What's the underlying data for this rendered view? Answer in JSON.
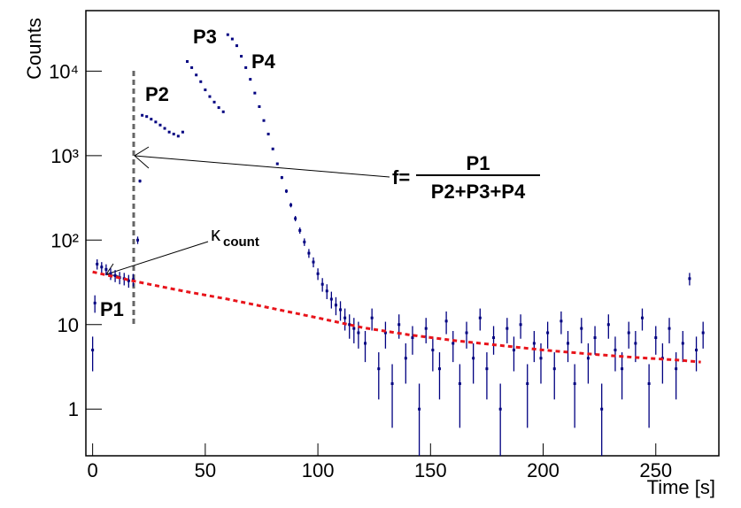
{
  "chart_data": {
    "type": "histogram-log",
    "y_label": "Counts",
    "x_label": "Time [s]",
    "annotations": {
      "p1": "P1",
      "p2": "P2",
      "p3": "P3",
      "p4": "P4",
      "f": "f=",
      "num": "P1",
      "den": "P2+P3+P4",
      "kappa": "κ",
      "kappa_sub": "count"
    },
    "x": [
      0,
      1,
      2,
      4,
      6,
      8,
      10,
      12,
      14,
      16,
      18,
      20,
      21,
      22,
      24,
      26,
      28,
      30,
      32,
      34,
      36,
      38,
      40,
      42,
      44,
      46,
      48,
      50,
      52,
      54,
      56,
      58,
      60,
      62,
      64,
      66,
      68,
      70,
      72,
      74,
      76,
      78,
      80,
      82,
      84,
      86,
      88,
      90,
      92,
      94,
      96,
      98,
      100,
      102,
      104,
      106,
      108,
      110,
      112,
      114,
      116,
      118,
      121,
      124,
      127,
      130,
      133,
      136,
      139,
      142,
      145,
      148,
      151,
      154,
      157,
      160,
      163,
      166,
      169,
      172,
      175,
      178,
      181,
      184,
      187,
      190,
      193,
      196,
      199,
      202,
      205,
      208,
      211,
      214,
      217,
      220,
      223,
      226,
      229,
      232,
      235,
      238,
      241,
      244,
      247,
      250,
      253,
      256,
      259,
      262,
      265,
      268,
      271
    ],
    "values": [
      5,
      18,
      52,
      48,
      45,
      40,
      38,
      36,
      35,
      33,
      34,
      100,
      500,
      3000,
      2900,
      2700,
      2500,
      2300,
      2100,
      1900,
      1800,
      1700,
      1900,
      13000,
      11000,
      9000,
      7500,
      6000,
      5000,
      4300,
      3700,
      3300,
      27000,
      24000,
      20000,
      15000,
      11000,
      8000,
      5500,
      3800,
      2600,
      1800,
      1200,
      800,
      550,
      380,
      260,
      180,
      130,
      95,
      70,
      55,
      40,
      30,
      25,
      20,
      17,
      15,
      12,
      10,
      9,
      8,
      6,
      12,
      3,
      8,
      2,
      10,
      4,
      7,
      1,
      9,
      5,
      3,
      11,
      6,
      2,
      8,
      4,
      12,
      3,
      7,
      1,
      9,
      5,
      10,
      2,
      6,
      4,
      8,
      3,
      11,
      6,
      2,
      9,
      4,
      7,
      1,
      10,
      5,
      3,
      8,
      6,
      12,
      2,
      7,
      4,
      9,
      3,
      6,
      35,
      5,
      8
    ],
    "errors": [
      2.2,
      4.2,
      7.2,
      6.9,
      6.7,
      6.3,
      6.2,
      6,
      5.9,
      5.7,
      5.8,
      10,
      22,
      55,
      54,
      52,
      50,
      48,
      46,
      44,
      42,
      41,
      44,
      114,
      105,
      95,
      87,
      77,
      71,
      66,
      61,
      57,
      164,
      155,
      141,
      122,
      105,
      89,
      74,
      62,
      51,
      42,
      35,
      28,
      23,
      19,
      16,
      13,
      11,
      9.7,
      8.4,
      7.4,
      6.3,
      5.5,
      5,
      4.5,
      4.1,
      3.9,
      3.5,
      3.2,
      3,
      2.8,
      2.4,
      3.5,
      1.7,
      2.8,
      1.4,
      3.2,
      2,
      2.6,
      1,
      3,
      2.2,
      1.7,
      3.3,
      2.4,
      1.4,
      2.8,
      2,
      3.5,
      1.7,
      2.6,
      1,
      3,
      2.2,
      3.2,
      1.4,
      2.4,
      2,
      2.8,
      1.7,
      3.3,
      2.4,
      1.4,
      3,
      2,
      2.6,
      1,
      3.2,
      2.2,
      1.7,
      2.8,
      2.4,
      3.5,
      1.4,
      2.6,
      2,
      3,
      1.7,
      2.4,
      5.9,
      2.2,
      2.8
    ],
    "color": "#000080",
    "fit": {
      "color": "#e8141b",
      "x": [
        0,
        20,
        40,
        60,
        80,
        100,
        120,
        140,
        160,
        180,
        200,
        220,
        240,
        260,
        270
      ],
      "values": [
        42,
        32,
        25,
        20,
        15.5,
        12,
        9.2,
        7.6,
        6.5,
        5.7,
        5,
        4.5,
        4.1,
        3.8,
        3.6
      ]
    },
    "xlim": [
      -3,
      278
    ],
    "ylim": [
      0.28,
      52000
    ],
    "log_y": true,
    "xticks": [
      0,
      50,
      100,
      150,
      200,
      250
    ],
    "yticks": [
      1,
      10,
      {
        "value": 100,
        "label": "10²"
      },
      {
        "value": 1000,
        "label": "10³"
      },
      {
        "value": 10000,
        "label": "10⁴"
      }
    ]
  }
}
